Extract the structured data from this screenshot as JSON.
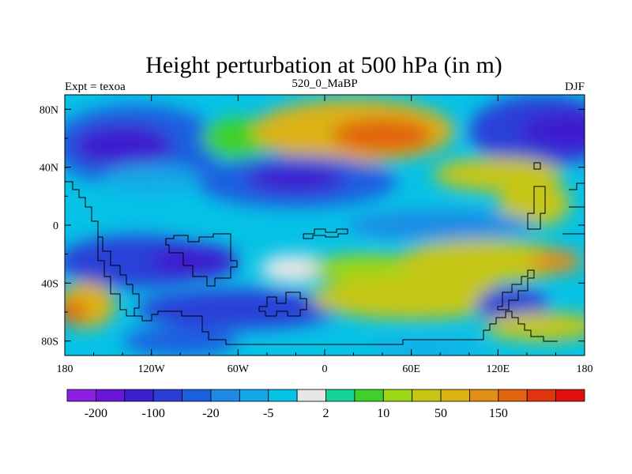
{
  "chart_data": {
    "type": "heatmap",
    "title": "Height perturbation at 500 hPa (in m)",
    "left_label": "Expt = texoa",
    "center_label": "520_0_MaBP",
    "right_label": "DJF",
    "x_range": [
      -180,
      180
    ],
    "y_range": [
      -90,
      90
    ],
    "x_ticks": [
      {
        "value": -180,
        "label": "180"
      },
      {
        "value": -120,
        "label": "120W"
      },
      {
        "value": -60,
        "label": "60W"
      },
      {
        "value": 0,
        "label": "0"
      },
      {
        "value": 60,
        "label": "60E"
      },
      {
        "value": 120,
        "label": "120E"
      },
      {
        "value": 180,
        "label": "180"
      }
    ],
    "y_ticks": [
      {
        "value": 80,
        "label": "80N"
      },
      {
        "value": 40,
        "label": "40N"
      },
      {
        "value": 0,
        "label": "0"
      },
      {
        "value": -40,
        "label": "40S"
      },
      {
        "value": -80,
        "label": "80S"
      }
    ],
    "colorbar": {
      "colors": [
        "#8b1fe6",
        "#6a16d8",
        "#3c1ecf",
        "#2a3fd8",
        "#1a5fe0",
        "#1e8ae6",
        "#12a8e8",
        "#06c2e6",
        "#e6e6e6",
        "#14d49a",
        "#3fd12a",
        "#9cd614",
        "#c6c614",
        "#dcb212",
        "#e28e14",
        "#e2640e",
        "#e2340e",
        "#e0100e"
      ],
      "labels": [
        {
          "boundary": 1,
          "label": "-200"
        },
        {
          "boundary": 3,
          "label": "-100"
        },
        {
          "boundary": 5,
          "label": "-20"
        },
        {
          "boundary": 7,
          "label": "-5"
        },
        {
          "boundary": 9,
          "label": "2"
        },
        {
          "boundary": 11,
          "label": "10"
        },
        {
          "boundary": 13,
          "label": "50"
        },
        {
          "boundary": 15,
          "label": "150"
        }
      ]
    },
    "field_blobs": [
      {
        "lon": -130,
        "lat": 55,
        "rlon": 60,
        "rlat": 28,
        "value": -50
      },
      {
        "lon": -140,
        "lat": 55,
        "rlon": 35,
        "rlat": 15,
        "value": -150
      },
      {
        "lon": -60,
        "lat": 60,
        "rlon": 25,
        "rlat": 14,
        "value": 5
      },
      {
        "lon": 20,
        "lat": 65,
        "rlon": 70,
        "rlat": 22,
        "value": 50
      },
      {
        "lon": 40,
        "lat": 62,
        "rlon": 35,
        "rlat": 12,
        "value": 150
      },
      {
        "lon": 150,
        "lat": 65,
        "rlon": 50,
        "rlat": 25,
        "value": -80
      },
      {
        "lon": 170,
        "lat": 65,
        "rlon": 35,
        "rlat": 14,
        "value": -150
      },
      {
        "lon": -20,
        "lat": 30,
        "rlon": 70,
        "rlat": 18,
        "value": -40
      },
      {
        "lon": -20,
        "lat": 32,
        "rlon": 35,
        "rlat": 10,
        "value": -110
      },
      {
        "lon": -120,
        "lat": 32,
        "rlon": 35,
        "rlat": 10,
        "value": -8
      },
      {
        "lon": 120,
        "lat": 35,
        "rlon": 45,
        "rlat": 12,
        "value": 40
      },
      {
        "lon": 145,
        "lat": 15,
        "rlon": 25,
        "rlat": 16,
        "value": 20
      },
      {
        "lon": 80,
        "lat": 0,
        "rlon": 65,
        "rlat": 10,
        "value": -15
      },
      {
        "lon": -130,
        "lat": -25,
        "rlon": 55,
        "rlat": 18,
        "value": -60
      },
      {
        "lon": -90,
        "lat": -25,
        "rlon": 30,
        "rlat": 12,
        "value": -110
      },
      {
        "lon": -20,
        "lat": -30,
        "rlon": 25,
        "rlat": 10,
        "value": -2
      },
      {
        "lon": 30,
        "lat": -30,
        "rlon": 40,
        "rlat": 10,
        "value": 10
      },
      {
        "lon": 110,
        "lat": -25,
        "rlon": 60,
        "rlat": 15,
        "value": 40
      },
      {
        "lon": 160,
        "lat": -25,
        "rlon": 18,
        "rlat": 8,
        "value": 120
      },
      {
        "lon": -165,
        "lat": -55,
        "rlon": 20,
        "rlat": 16,
        "value": 70
      },
      {
        "lon": -175,
        "lat": -60,
        "rlon": 10,
        "rlat": 8,
        "value": 150
      },
      {
        "lon": -60,
        "lat": -58,
        "rlon": 70,
        "rlat": 14,
        "value": -80
      },
      {
        "lon": 60,
        "lat": -50,
        "rlon": 70,
        "rlat": 15,
        "value": 25
      },
      {
        "lon": 130,
        "lat": -55,
        "rlon": 25,
        "rlat": 12,
        "value": -90
      },
      {
        "lon": 150,
        "lat": -70,
        "rlon": 40,
        "rlat": 10,
        "value": 30
      },
      {
        "lon": -100,
        "lat": -80,
        "rlon": 40,
        "rlat": 10,
        "value": -40
      },
      {
        "lon": 70,
        "lat": -85,
        "rlon": 40,
        "rlat": 5,
        "value": -10
      }
    ]
  }
}
